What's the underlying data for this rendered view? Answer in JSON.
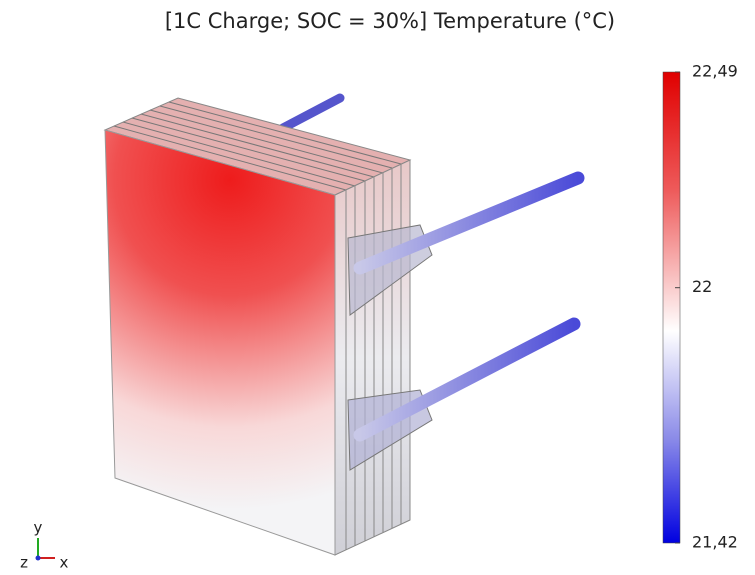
{
  "title": "[1C Charge; SOC = 30%] Temperature (°C)",
  "colorbar": {
    "lim": [
      21.42,
      22.49
    ],
    "ticks": [
      {
        "value": 22.49,
        "label": "22,49"
      },
      22,
      {
        "value": 21.42,
        "label": "21,42"
      }
    ]
  },
  "triad": {
    "y": "y",
    "z": "z",
    "x": "x"
  }
}
